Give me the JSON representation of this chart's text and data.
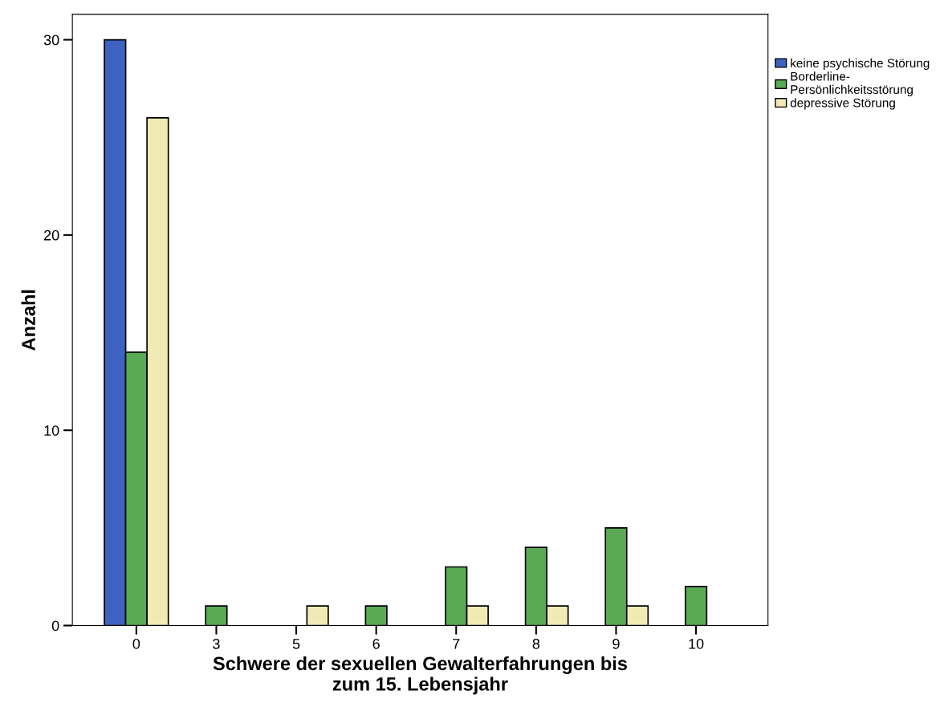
{
  "chart_data": {
    "type": "bar",
    "categories": [
      "0",
      "3",
      "5",
      "6",
      "7",
      "8",
      "9",
      "10"
    ],
    "series": [
      {
        "name": "keine psychische Störung",
        "color": "#3d62c0",
        "values": [
          30,
          null,
          null,
          null,
          null,
          null,
          null,
          null
        ]
      },
      {
        "name": "Borderline-\nPersönlichkeitsstörung",
        "color": "#5aaa55",
        "values": [
          14,
          1,
          null,
          1,
          3,
          4,
          5,
          2
        ]
      },
      {
        "name": "depressive Störung",
        "color": "#f0ebb5",
        "values": [
          26,
          null,
          1,
          null,
          1,
          1,
          1,
          null
        ]
      }
    ],
    "xlabel": "Schwere der sexuellen Gewalterfahrungen bis\nzum 15. Lebensjahr",
    "ylabel": "Anzahl",
    "ylim": [
      0,
      31.3
    ],
    "yticks": [
      0,
      10,
      20,
      30
    ],
    "grid": false,
    "legend": "top right"
  }
}
